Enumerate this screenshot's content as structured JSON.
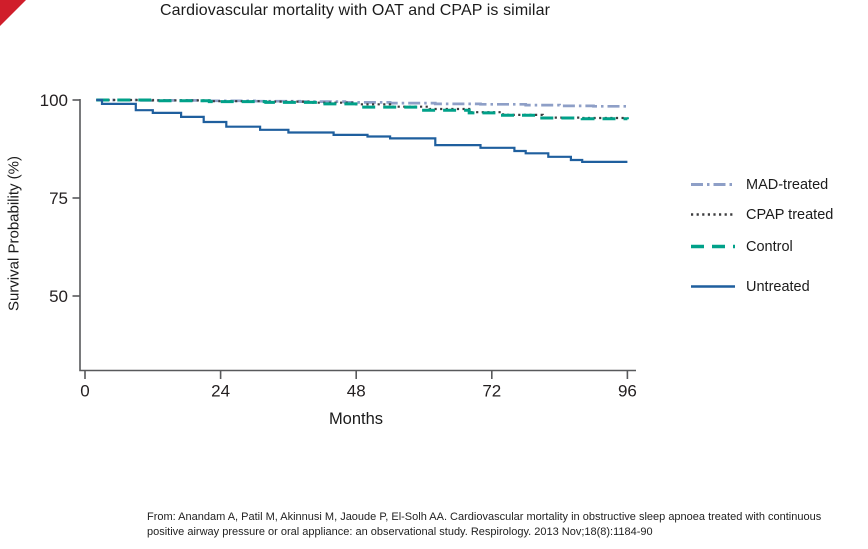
{
  "accent": {
    "corner_color": "#d01e2b"
  },
  "title": "Cardiovascular mortality with OAT and CPAP is similar",
  "citation": {
    "line1": "From: Anandam A, Patil M, Akinnusi M, Jaoude P, El-Solh AA. Cardiovascular mortality in obstructive sleep apnoea treated with continuous",
    "line2": "positive airway pressure or oral appliance: an observational study. Respirology. 2013 Nov;18(8):1184-90"
  },
  "chart_data": {
    "type": "line",
    "subtype": "kaplan-meier-step",
    "title": "Cardiovascular mortality with OAT and CPAP is similar",
    "xlabel": "Months",
    "ylabel": "Survival Probability (%)",
    "xlim": [
      0,
      96
    ],
    "ylim": [
      31,
      101
    ],
    "xticks": [
      0,
      24,
      48,
      72,
      96
    ],
    "yticks": [
      100,
      75,
      50
    ],
    "grid": false,
    "legend_position": "right",
    "axis_color": "#58595b",
    "series": [
      {
        "name": "MAD-treated",
        "color": "#8e9fc7",
        "style": "dashdot",
        "points": [
          [
            2,
            100
          ],
          [
            10,
            99.9
          ],
          [
            20,
            99.8
          ],
          [
            30,
            99.7
          ],
          [
            38,
            99.6
          ],
          [
            46,
            99.4
          ],
          [
            54,
            99.2
          ],
          [
            62,
            99.0
          ],
          [
            70,
            98.9
          ],
          [
            78,
            98.7
          ],
          [
            84,
            98.5
          ],
          [
            90,
            98.4
          ],
          [
            96,
            98.3
          ]
        ]
      },
      {
        "name": "CPAP treated",
        "color": "#3d3d3f",
        "style": "dotted",
        "points": [
          [
            2,
            100
          ],
          [
            12,
            99.9
          ],
          [
            22,
            99.7
          ],
          [
            32,
            99.6
          ],
          [
            40,
            99.3
          ],
          [
            48,
            98.9
          ],
          [
            54,
            98.3
          ],
          [
            61,
            97.7
          ],
          [
            68,
            96.9
          ],
          [
            74,
            96.2
          ],
          [
            81,
            95.5
          ],
          [
            88,
            95.4
          ],
          [
            96,
            95.4
          ]
        ]
      },
      {
        "name": "Control",
        "color": "#00a189",
        "style": "dashed",
        "points": [
          [
            2,
            100
          ],
          [
            12,
            99.8
          ],
          [
            22,
            99.6
          ],
          [
            32,
            99.4
          ],
          [
            42,
            99.0
          ],
          [
            49,
            98.2
          ],
          [
            59,
            97.4
          ],
          [
            68,
            96.7
          ],
          [
            73,
            96.1
          ],
          [
            80,
            95.4
          ],
          [
            88,
            95.2
          ],
          [
            96,
            95.1
          ]
        ]
      },
      {
        "name": "Untreated",
        "color": "#1f5f9e",
        "style": "solid",
        "points": [
          [
            2,
            100
          ],
          [
            3,
            99.0
          ],
          [
            9,
            97.4
          ],
          [
            12,
            96.7
          ],
          [
            17,
            95.7
          ],
          [
            21,
            94.4
          ],
          [
            25,
            93.2
          ],
          [
            31,
            92.4
          ],
          [
            36,
            91.7
          ],
          [
            44,
            91.1
          ],
          [
            50,
            90.7
          ],
          [
            54,
            90.2
          ],
          [
            62,
            88.5
          ],
          [
            70,
            87.8
          ],
          [
            76,
            87.0
          ],
          [
            78,
            86.4
          ],
          [
            82,
            85.5
          ],
          [
            86,
            84.7
          ],
          [
            88,
            84.2
          ],
          [
            96,
            84.2
          ]
        ]
      }
    ]
  }
}
